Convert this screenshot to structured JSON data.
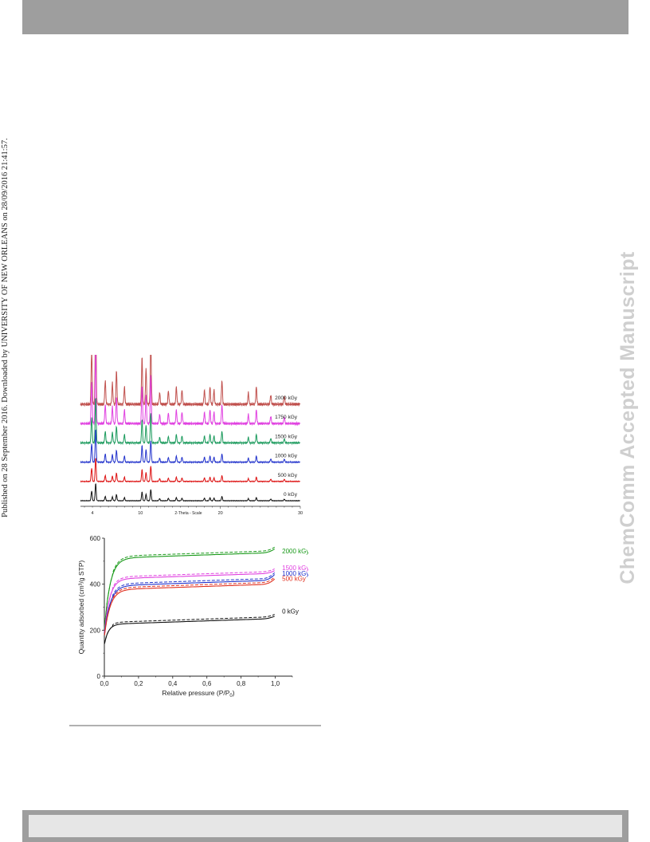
{
  "sidebar_left": "Published on 28 September 2016. Downloaded by UNIVERSITY OF NEW ORLEANS on 28/09/2016 21:41:57.",
  "watermark": "ChemComm Accepted Manuscript",
  "chart_data": [
    {
      "type": "line",
      "xlabel": "2-Theta - Scale",
      "xticks": [
        4,
        10,
        20,
        30
      ],
      "xlim": [
        2.5,
        30
      ],
      "series": [
        {
          "name": "2000 kGy",
          "color": "#c0504d",
          "label": "2000 kGy"
        },
        {
          "name": "1750 kGy",
          "color": "#e040e0",
          "label": "1750 kGy"
        },
        {
          "name": "1500 kGy",
          "color": "#1a9a5c",
          "label": "1500 kGy"
        },
        {
          "name": "1000 kGy",
          "color": "#2233cc",
          "label": "1000 kGy"
        },
        {
          "name": "500 kGy",
          "color": "#dd1111",
          "label": "500 kGy"
        },
        {
          "name": "0 kGy",
          "color": "#111111",
          "label": "0 kGy"
        }
      ],
      "peaks": [
        {
          "x": 3.9,
          "h": 0.55
        },
        {
          "x": 4.4,
          "h": 1.0
        },
        {
          "x": 5.6,
          "h": 0.25
        },
        {
          "x": 6.5,
          "h": 0.22
        },
        {
          "x": 7.0,
          "h": 0.35
        },
        {
          "x": 8.0,
          "h": 0.18
        },
        {
          "x": 10.2,
          "h": 0.5
        },
        {
          "x": 10.7,
          "h": 0.38
        },
        {
          "x": 11.3,
          "h": 0.65
        },
        {
          "x": 12.4,
          "h": 0.12
        },
        {
          "x": 13.5,
          "h": 0.14
        },
        {
          "x": 14.5,
          "h": 0.18
        },
        {
          "x": 15.2,
          "h": 0.15
        },
        {
          "x": 18.0,
          "h": 0.15
        },
        {
          "x": 18.7,
          "h": 0.18
        },
        {
          "x": 19.2,
          "h": 0.15
        },
        {
          "x": 20.2,
          "h": 0.25
        },
        {
          "x": 23.5,
          "h": 0.12
        },
        {
          "x": 24.5,
          "h": 0.18
        },
        {
          "x": 26.3,
          "h": 0.1
        },
        {
          "x": 28.0,
          "h": 0.09
        }
      ]
    },
    {
      "type": "line",
      "xlabel": "Relative pressure (P/P",
      "xlabel_sub": "0",
      "xlabel_end": ")",
      "ylabel": "Quantity adsorbed (cm³/g STP)",
      "xlim": [
        0,
        1.1
      ],
      "ylim": [
        0,
        600
      ],
      "xticks": [
        "0,0",
        "0,2",
        "0,4",
        "0,6",
        "0,8",
        "1,0"
      ],
      "xtick_values": [
        0,
        0.2,
        0.4,
        0.6,
        0.8,
        1.0
      ],
      "yticks": [
        0,
        200,
        400,
        600
      ],
      "series": [
        {
          "name": "2000 kGy",
          "color": "#1a9a1a",
          "label": "2000 kGy",
          "plateau": 515,
          "knee": 0.1,
          "start": 200,
          "end": 555
        },
        {
          "name": "1500 kGy",
          "color": "#e040e0",
          "label": "1500 kGy",
          "plateau": 425,
          "knee": 0.09,
          "start": 185,
          "end": 460
        },
        {
          "name": "1000 kGy",
          "color": "#2233cc",
          "label": "1000 kGy",
          "plateau": 395,
          "knee": 0.1,
          "start": 180,
          "end": 445
        },
        {
          "name": "500 kGy",
          "color": "#e03020",
          "label": "500 kGy",
          "plateau": 378,
          "knee": 0.1,
          "start": 175,
          "end": 425
        },
        {
          "name": "0 kGy",
          "color": "#111111",
          "label": "0 kGy",
          "plateau": 228,
          "knee": 0.07,
          "start": 140,
          "end": 262
        }
      ]
    }
  ]
}
